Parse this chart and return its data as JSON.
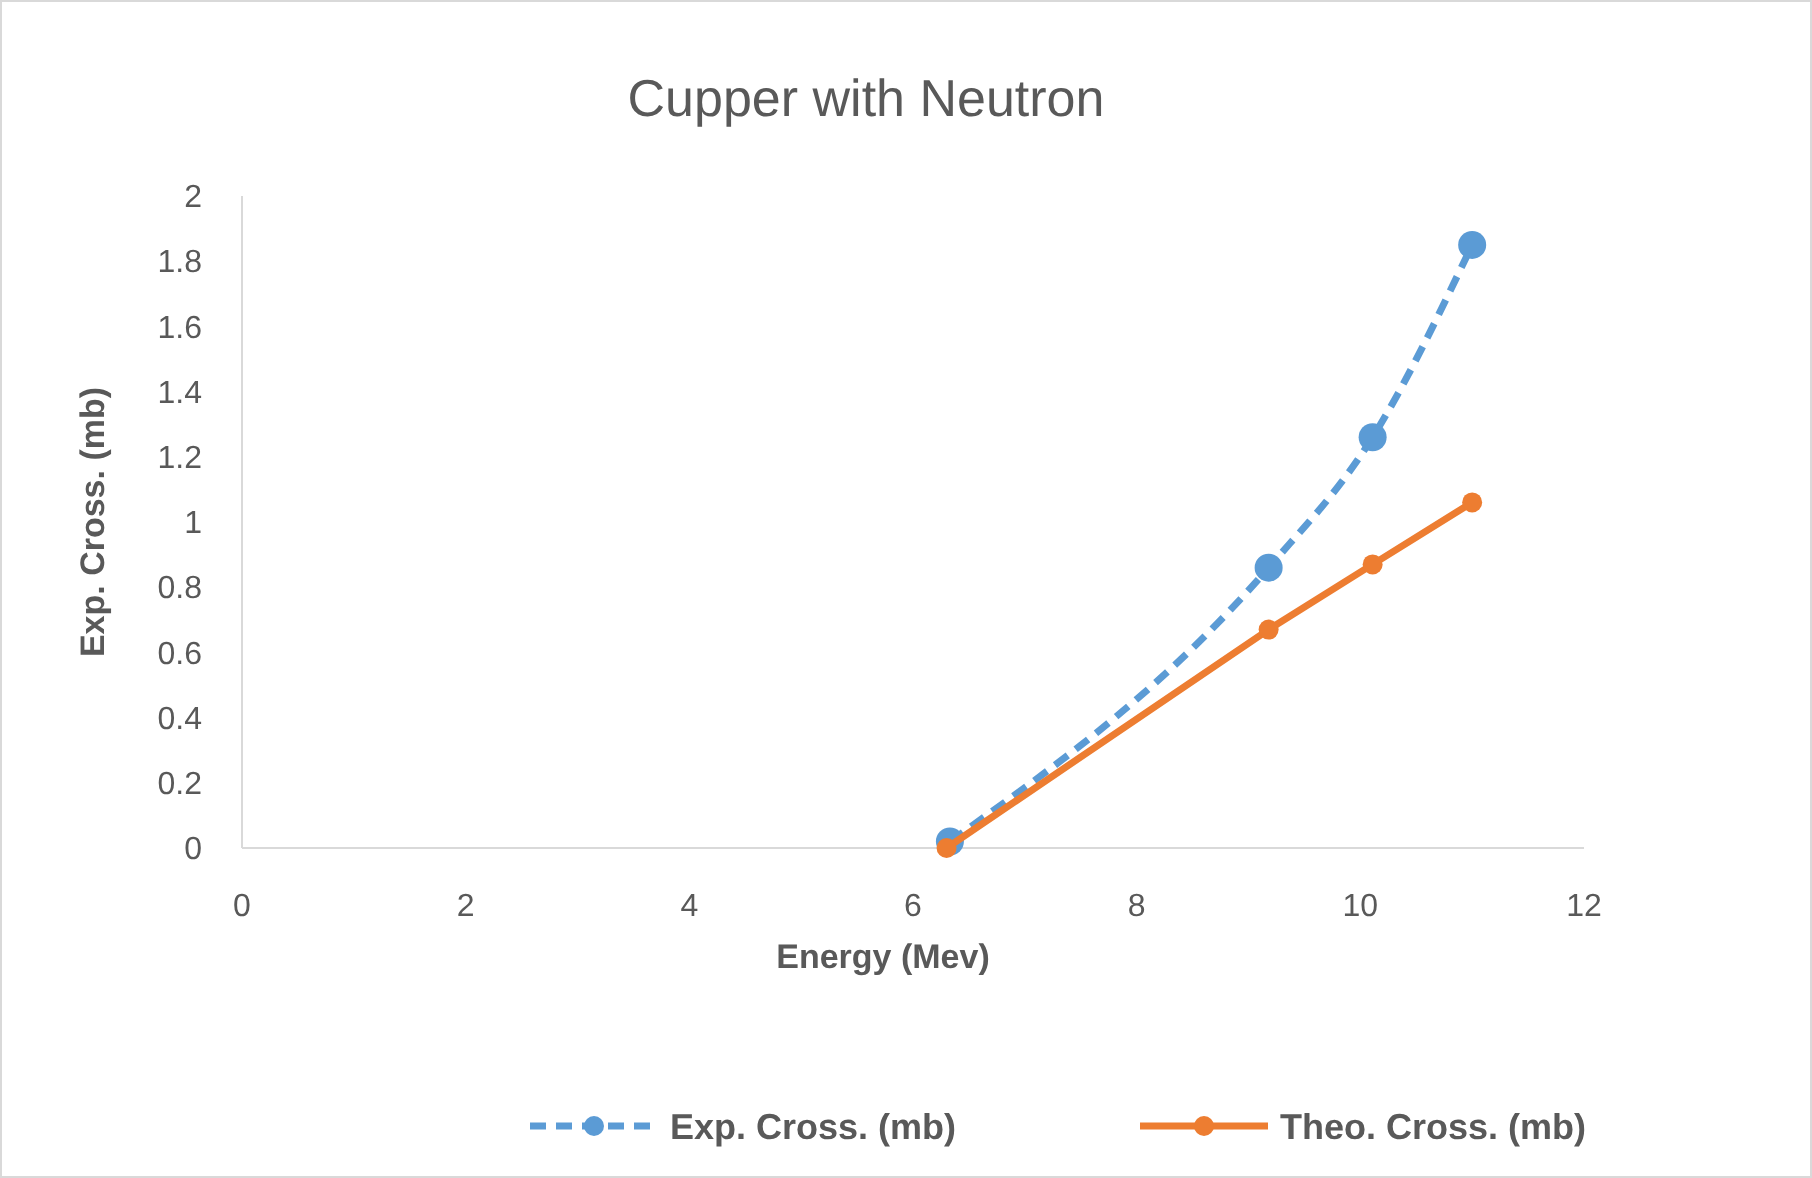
{
  "chart_data": {
    "type": "line",
    "title": "Cupper with Neutron",
    "xlabel": "Energy (Mev)",
    "ylabel": "Exp. Cross. (mb)",
    "xlim": [
      0,
      12
    ],
    "xticks": [
      0,
      2,
      4,
      6,
      8,
      10,
      12
    ],
    "ylim": [
      0,
      2
    ],
    "yticks": [
      0,
      0.2,
      0.4,
      0.6,
      0.8,
      1,
      1.2,
      1.4,
      1.6,
      1.8,
      2
    ],
    "grid": false,
    "legend": "bottom",
    "marker": "circle",
    "series": [
      {
        "name": "Exp. Cross. (mb)",
        "color": "#5b9bd5",
        "line_style": "dashed",
        "x": [
          6.33,
          9.18,
          10.11,
          11
        ],
        "values": [
          0.02,
          0.86,
          1.26,
          1.85
        ]
      },
      {
        "name": "Theo. Cross. (mb)",
        "color": "#ed7d31",
        "line_style": "solid",
        "x": [
          6.3,
          9.18,
          10.11,
          11
        ],
        "values": [
          0,
          0.67,
          0.87,
          1.06
        ]
      }
    ]
  }
}
